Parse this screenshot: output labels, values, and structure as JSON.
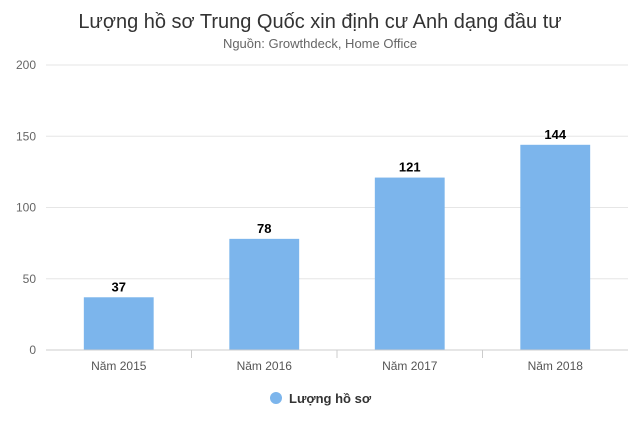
{
  "chart_data": {
    "type": "bar",
    "title": "Lượng hồ sơ Trung Quốc xin định cư Anh dạng đầu tư",
    "subtitle": "Nguồn: Growthdeck, Home Office",
    "categories": [
      "Năm 2015",
      "Năm 2016",
      "Năm 2017",
      "Năm 2018"
    ],
    "series": [
      {
        "name": "Lượng hồ sơ",
        "values": [
          37,
          78,
          121,
          144
        ],
        "color": "#7cb5ec"
      }
    ],
    "ylim": [
      0,
      200
    ],
    "yticks": [
      0,
      50,
      100,
      150,
      200
    ],
    "grid": true,
    "legend": "bottom-center",
    "data_labels": true
  }
}
